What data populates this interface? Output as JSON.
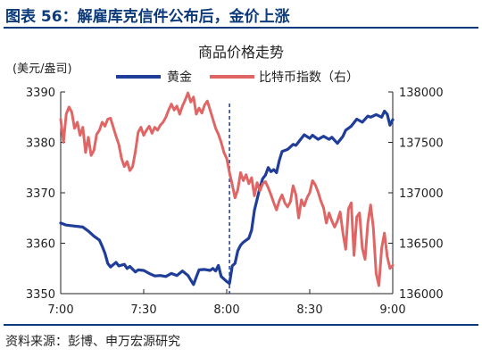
{
  "figure": {
    "title": "图表 56：解雇库克信件公布后，金价上涨",
    "source": "资料来源：彭博、申万宏源研究"
  },
  "chart_data": {
    "type": "line",
    "title": "商品价格走势",
    "y_left_label": "(美元/盎司)",
    "legend_position": "top",
    "x_ticks": [
      "7:00",
      "7:30",
      "8:00",
      "8:30",
      "9:00"
    ],
    "y_left": {
      "range": [
        3350,
        3390
      ],
      "ticks": [
        3350,
        3360,
        3370,
        3380,
        3390
      ]
    },
    "y_right": {
      "range": [
        136000,
        138000
      ],
      "ticks": [
        136000,
        136500,
        137000,
        137500,
        138000
      ]
    },
    "event_line_x": "8:01",
    "series": [
      {
        "name": "黄金",
        "axis": "left",
        "color": "#1f3d99",
        "points": [
          [
            "7:00",
            3364.0
          ],
          [
            "7:02",
            3363.6
          ],
          [
            "7:05",
            3363.4
          ],
          [
            "7:08",
            3363.2
          ],
          [
            "7:10",
            3362.4
          ],
          [
            "7:12",
            3361.4
          ],
          [
            "7:14",
            3360.6
          ],
          [
            "7:15",
            3359.4
          ],
          [
            "7:16",
            3358.0
          ],
          [
            "7:17",
            3356.0
          ],
          [
            "7:18",
            3355.3
          ],
          [
            "7:20",
            3356.2
          ],
          [
            "7:21",
            3355.5
          ],
          [
            "7:23",
            3355.8
          ],
          [
            "7:24",
            3355.0
          ],
          [
            "7:25",
            3355.4
          ],
          [
            "7:27",
            3354.3
          ],
          [
            "7:28",
            3354.7
          ],
          [
            "7:30",
            3354.6
          ],
          [
            "7:32",
            3354.0
          ],
          [
            "7:34",
            3353.5
          ],
          [
            "7:36",
            3353.6
          ],
          [
            "7:38",
            3353.4
          ],
          [
            "7:40",
            3354.0
          ],
          [
            "7:42",
            3353.6
          ],
          [
            "7:44",
            3354.5
          ],
          [
            "7:46",
            3353.6
          ],
          [
            "7:48",
            3351.8
          ],
          [
            "7:49",
            3353.3
          ],
          [
            "7:50",
            3354.7
          ],
          [
            "7:52",
            3354.8
          ],
          [
            "7:54",
            3354.6
          ],
          [
            "7:55",
            3355.0
          ],
          [
            "7:56",
            3354.5
          ],
          [
            "7:57",
            3355.6
          ],
          [
            "7:58",
            3353.4
          ],
          [
            "8:00",
            3352.4
          ],
          [
            "8:01",
            3352.0
          ],
          [
            "8:02",
            3355.5
          ],
          [
            "8:03",
            3356.0
          ],
          [
            "8:04",
            3358.5
          ],
          [
            "8:05",
            3359.6
          ],
          [
            "8:06",
            3360.2
          ],
          [
            "8:08",
            3361.0
          ],
          [
            "8:09",
            3362.6
          ],
          [
            "8:10",
            3366.5
          ],
          [
            "8:12",
            3371.0
          ],
          [
            "8:13",
            3372.8
          ],
          [
            "8:14",
            3373.5
          ],
          [
            "8:15",
            3375.0
          ],
          [
            "8:16",
            3374.2
          ],
          [
            "8:17",
            3374.6
          ],
          [
            "8:18",
            3374.0
          ],
          [
            "8:19",
            3376.4
          ],
          [
            "8:20",
            3378.2
          ],
          [
            "8:22",
            3378.6
          ],
          [
            "8:24",
            3379.6
          ],
          [
            "8:25",
            3379.4
          ],
          [
            "8:27",
            3380.8
          ],
          [
            "8:28",
            3381.5
          ],
          [
            "8:30",
            3380.8
          ],
          [
            "8:31",
            3381.4
          ],
          [
            "8:33",
            3380.6
          ],
          [
            "8:35",
            3381.2
          ],
          [
            "8:37",
            3380.6
          ],
          [
            "8:38",
            3381.0
          ],
          [
            "8:40",
            3379.8
          ],
          [
            "8:42",
            3381.2
          ],
          [
            "8:43",
            3382.4
          ],
          [
            "8:45",
            3383.2
          ],
          [
            "8:47",
            3384.6
          ],
          [
            "8:49",
            3384.0
          ],
          [
            "8:51",
            3385.2
          ],
          [
            "8:52",
            3385.0
          ],
          [
            "8:54",
            3385.5
          ],
          [
            "8:56",
            3385.0
          ],
          [
            "8:57",
            3386.2
          ],
          [
            "8:58",
            3385.6
          ],
          [
            "8:59",
            3383.4
          ],
          [
            "9:00",
            3384.5
          ]
        ]
      },
      {
        "name": "比特币指数（右）",
        "axis": "right",
        "color": "#e06666",
        "points": [
          [
            "7:00",
            137730
          ],
          [
            "7:01",
            137500
          ],
          [
            "7:02",
            137780
          ],
          [
            "7:03",
            137850
          ],
          [
            "7:04",
            137800
          ],
          [
            "7:05",
            137640
          ],
          [
            "7:06",
            137700
          ],
          [
            "7:07",
            137570
          ],
          [
            "7:08",
            137650
          ],
          [
            "7:09",
            137400
          ],
          [
            "7:10",
            137550
          ],
          [
            "7:11",
            137370
          ],
          [
            "7:12",
            137420
          ],
          [
            "7:13",
            137580
          ],
          [
            "7:14",
            137620
          ],
          [
            "7:15",
            137700
          ],
          [
            "7:16",
            137660
          ],
          [
            "7:17",
            137730
          ],
          [
            "7:18",
            137740
          ],
          [
            "7:19",
            137650
          ],
          [
            "7:20",
            137560
          ],
          [
            "7:21",
            137480
          ],
          [
            "7:22",
            137340
          ],
          [
            "7:23",
            137260
          ],
          [
            "7:24",
            137310
          ],
          [
            "7:25",
            137220
          ],
          [
            "7:26",
            137260
          ],
          [
            "7:27",
            137410
          ],
          [
            "7:28",
            137600
          ],
          [
            "7:29",
            137650
          ],
          [
            "7:30",
            137570
          ],
          [
            "7:31",
            137620
          ],
          [
            "7:32",
            137660
          ],
          [
            "7:33",
            137590
          ],
          [
            "7:34",
            137650
          ],
          [
            "7:35",
            137620
          ],
          [
            "7:36",
            137670
          ],
          [
            "7:37",
            137700
          ],
          [
            "7:38",
            137750
          ],
          [
            "7:39",
            137820
          ],
          [
            "7:40",
            137880
          ],
          [
            "7:41",
            137820
          ],
          [
            "7:42",
            137860
          ],
          [
            "7:43",
            137780
          ],
          [
            "7:44",
            137860
          ],
          [
            "7:45",
            137920
          ],
          [
            "7:46",
            137990
          ],
          [
            "7:47",
            137900
          ],
          [
            "7:48",
            137950
          ],
          [
            "7:49",
            137780
          ],
          [
            "7:50",
            137840
          ],
          [
            "7:51",
            137790
          ],
          [
            "7:52",
            137870
          ],
          [
            "7:53",
            137910
          ],
          [
            "7:54",
            137820
          ],
          [
            "7:55",
            137730
          ],
          [
            "7:56",
            137640
          ],
          [
            "7:57",
            137580
          ],
          [
            "7:58",
            137500
          ],
          [
            "7:59",
            137400
          ],
          [
            "8:00",
            137340
          ],
          [
            "8:01",
            137200
          ],
          [
            "8:02",
            137080
          ],
          [
            "8:03",
            136950
          ],
          [
            "8:04",
            137030
          ],
          [
            "8:05",
            137200
          ],
          [
            "8:06",
            137120
          ],
          [
            "8:07",
            137180
          ],
          [
            "8:08",
            137090
          ],
          [
            "8:09",
            137150
          ],
          [
            "8:10",
            136970
          ],
          [
            "8:11",
            137100
          ],
          [
            "8:12",
            137020
          ],
          [
            "8:13",
            137090
          ],
          [
            "8:14",
            137110
          ],
          [
            "8:15",
            137050
          ],
          [
            "8:16",
            136980
          ],
          [
            "8:17",
            136900
          ],
          [
            "8:18",
            136830
          ],
          [
            "8:19",
            136920
          ],
          [
            "8:20",
            136980
          ],
          [
            "8:21",
            136900
          ],
          [
            "8:22",
            136860
          ],
          [
            "8:23",
            136910
          ],
          [
            "8:24",
            137070
          ],
          [
            "8:25",
            136980
          ],
          [
            "8:26",
            136750
          ],
          [
            "8:27",
            136930
          ],
          [
            "8:28",
            136870
          ],
          [
            "8:29",
            136950
          ],
          [
            "8:30",
            137000
          ],
          [
            "8:31",
            137120
          ],
          [
            "8:32",
            137080
          ],
          [
            "8:33",
            137010
          ],
          [
            "8:34",
            136920
          ],
          [
            "8:35",
            136850
          ],
          [
            "8:36",
            136700
          ],
          [
            "8:37",
            136800
          ],
          [
            "8:38",
            136720
          ],
          [
            "8:39",
            136660
          ],
          [
            "8:40",
            136720
          ],
          [
            "8:41",
            136810
          ],
          [
            "8:42",
            136600
          ],
          [
            "8:43",
            136440
          ],
          [
            "8:44",
            136840
          ],
          [
            "8:45",
            136900
          ],
          [
            "8:46",
            136380
          ],
          [
            "8:47",
            136760
          ],
          [
            "8:48",
            136800
          ],
          [
            "8:49",
            136450
          ],
          [
            "8:50",
            136340
          ],
          [
            "8:51",
            136700
          ],
          [
            "8:52",
            136880
          ],
          [
            "8:53",
            136650
          ],
          [
            "8:54",
            136200
          ],
          [
            "8:55",
            136080
          ],
          [
            "8:56",
            136450
          ],
          [
            "8:57",
            136600
          ],
          [
            "8:58",
            136370
          ],
          [
            "8:59",
            136250
          ],
          [
            "9:00",
            136280
          ]
        ]
      }
    ]
  }
}
